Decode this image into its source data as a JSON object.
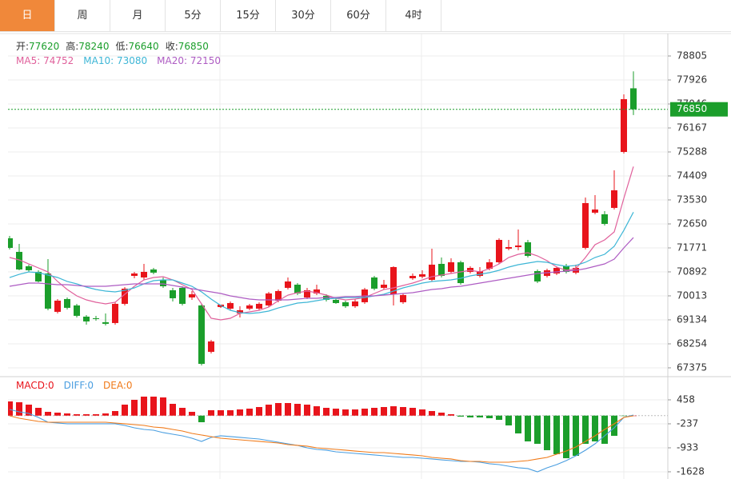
{
  "tabs": [
    "日",
    "周",
    "月",
    "5分",
    "15分",
    "30分",
    "60分",
    "4时"
  ],
  "active_tab": 0,
  "active_color": "#f0883a",
  "chart_data": [
    {
      "type": "candlestick",
      "ohlc_labels": [
        "开:",
        "高:",
        "低:",
        "收:"
      ],
      "up_color": "#e8141b",
      "down_color": "#1b9e2b",
      "open": [
        72123,
        71625,
        71097,
        70892,
        70833,
        69427,
        69896,
        69662,
        69251,
        69193,
        69046,
        69017,
        69720,
        70745,
        70687,
        70980,
        70599,
        70218,
        70306,
        69954,
        69662,
        67961,
        69603,
        69544,
        69368,
        69544,
        69544,
        69662,
        69837,
        70306,
        70423,
        69954,
        70101,
        70013,
        69866,
        69779,
        69632,
        69779,
        70687,
        70306,
        70071,
        69779,
        70657,
        70716,
        70599,
        71185,
        70892,
        71244,
        70892,
        70745,
        71009,
        71244,
        71742,
        71800,
        71976,
        70921,
        70745,
        70833,
        71097,
        70863,
        71771,
        73061,
        73003,
        73237,
        75288,
        77620
      ],
      "high": [
        72211,
        71918,
        71156,
        70951,
        71361,
        69896,
        69954,
        69720,
        69310,
        69281,
        69368,
        69779,
        70335,
        70892,
        71185,
        71038,
        70687,
        70306,
        70364,
        70189,
        69720,
        68401,
        69691,
        69808,
        69632,
        69720,
        69779,
        70159,
        70247,
        70687,
        70481,
        70306,
        70423,
        70071,
        69925,
        69837,
        69896,
        70306,
        70745,
        70599,
        71097,
        70101,
        70833,
        70951,
        71742,
        71420,
        71390,
        71302,
        71097,
        71068,
        71361,
        72123,
        72064,
        72445,
        72064,
        70980,
        71009,
        71097,
        71185,
        71156,
        73618,
        73706,
        73120,
        74614,
        77398,
        78240
      ],
      "low": [
        71712,
        70951,
        70892,
        70511,
        69486,
        69368,
        69515,
        69222,
        68958,
        69105,
        68929,
        68958,
        69662,
        70657,
        70599,
        70804,
        70306,
        69808,
        69662,
        69866,
        67463,
        67902,
        69574,
        69486,
        69222,
        69486,
        69486,
        69603,
        69779,
        70247,
        70042,
        69896,
        70042,
        69808,
        69720,
        69574,
        69574,
        69720,
        70218,
        70247,
        69662,
        69720,
        70599,
        70657,
        70540,
        70687,
        70833,
        70423,
        70833,
        70687,
        70951,
        71185,
        71683,
        71683,
        71420,
        70481,
        70687,
        70774,
        70833,
        70804,
        71712,
        73003,
        72592,
        73178,
        75229,
        76640
      ],
      "close": [
        71771,
        70980,
        70951,
        70540,
        69544,
        69837,
        69574,
        69281,
        69075,
        69163,
        68988,
        69720,
        70277,
        70833,
        70892,
        70863,
        70364,
        69925,
        69720,
        70071,
        67521,
        68342,
        69691,
        69749,
        69486,
        69662,
        69720,
        70101,
        70189,
        70540,
        70101,
        70218,
        70247,
        69866,
        69749,
        69632,
        69808,
        70247,
        70277,
        70423,
        71068,
        70042,
        70745,
        70804,
        71156,
        70745,
        71244,
        70481,
        71038,
        70921,
        71244,
        72064,
        71800,
        71859,
        71478,
        70540,
        70951,
        71038,
        70892,
        71038,
        73413,
        73178,
        72650,
        73882,
        77222,
        76850
      ],
      "ma_sep": ": ",
      "series": [
        {
          "name": "MA5",
          "color": "#e0609b",
          "values": [
            71419,
            71331,
            71184,
            71038,
            70891,
            70540,
            70246,
            70012,
            69865,
            69778,
            69719,
            69778,
            70071,
            70364,
            70598,
            70686,
            70715,
            70598,
            70422,
            70246,
            69719,
            69191,
            69133,
            69191,
            69367,
            69426,
            69484,
            69602,
            69836,
            70041,
            70129,
            70188,
            70129,
            70041,
            69924,
            69865,
            69895,
            69953,
            70100,
            70246,
            70305,
            70393,
            70481,
            70598,
            70715,
            70774,
            70833,
            70891,
            70950,
            70891,
            71009,
            71184,
            71419,
            71536,
            71595,
            71477,
            71302,
            71067,
            70950,
            71009,
            71419,
            71888,
            72064,
            72357,
            73588,
            74752
          ]
        },
        {
          "name": "MA10",
          "color": "#3db6d6",
          "values": [
            70686,
            70803,
            70891,
            70862,
            70774,
            70686,
            70540,
            70452,
            70334,
            70246,
            70188,
            70159,
            70217,
            70305,
            70452,
            70569,
            70598,
            70598,
            70481,
            70364,
            70159,
            69895,
            69660,
            69484,
            69396,
            69367,
            69396,
            69455,
            69572,
            69660,
            69748,
            69778,
            69836,
            69895,
            69924,
            69953,
            69953,
            69953,
            70012,
            70071,
            70188,
            70305,
            70393,
            70481,
            70540,
            70569,
            70598,
            70657,
            70745,
            70803,
            70862,
            70950,
            71067,
            71155,
            71214,
            71272,
            71243,
            71155,
            71096,
            71126,
            71243,
            71419,
            71536,
            71829,
            72415,
            73080
          ]
        },
        {
          "name": "MA20",
          "color": "#ae5cc3",
          "values": [
            70364,
            70422,
            70481,
            70481,
            70452,
            70422,
            70422,
            70393,
            70364,
            70364,
            70364,
            70393,
            70422,
            70452,
            70452,
            70452,
            70452,
            70393,
            70334,
            70276,
            70217,
            70159,
            70100,
            70012,
            69953,
            69895,
            69865,
            69865,
            69865,
            69865,
            69895,
            69924,
            69924,
            69953,
            69953,
            69983,
            69983,
            70012,
            70012,
            70041,
            70071,
            70100,
            70129,
            70188,
            70246,
            70276,
            70334,
            70364,
            70422,
            70481,
            70540,
            70598,
            70657,
            70715,
            70774,
            70833,
            70862,
            70891,
            70921,
            70950,
            71009,
            71096,
            71184,
            71360,
            71771,
            72150
          ]
        }
      ],
      "ylim": [
        67081,
        79626
      ],
      "yticks": [
        78805,
        77926,
        77046,
        76167,
        75288,
        74409,
        73530,
        72650,
        71771,
        70892,
        70013,
        69134,
        68254,
        67375
      ],
      "grid": true,
      "last_price_line": true
    },
    {
      "type": "macd",
      "sep": ":",
      "series": [
        {
          "name": "MACD",
          "kind": "bar",
          "color": "#e8141b",
          "down_color": "#1b9e2b",
          "readout": 0,
          "values": [
            412,
            388,
            319,
            226,
            110,
            87,
            64,
            41,
            41,
            41,
            64,
            133,
            319,
            458,
            551,
            551,
            528,
            342,
            226,
            110,
            -191,
            157,
            157,
            157,
            180,
            203,
            249,
            319,
            365,
            365,
            342,
            319,
            272,
            226,
            203,
            180,
            180,
            203,
            226,
            249,
            272,
            249,
            226,
            180,
            133,
            87,
            41,
            -29,
            -52,
            -52,
            -75,
            -122,
            -284,
            -516,
            -747,
            -817,
            -1002,
            -1118,
            -1234,
            -1165,
            -817,
            -747,
            -817,
            -585,
            -5,
            0
          ]
        },
        {
          "name": "DIFF",
          "kind": "line",
          "color": "#4a9ee0",
          "readout": 0,
          "values": [
            180,
            110,
            64,
            -52,
            -191,
            -214,
            -237,
            -237,
            -237,
            -237,
            -237,
            -237,
            -284,
            -353,
            -400,
            -423,
            -492,
            -539,
            -585,
            -655,
            -747,
            -631,
            -585,
            -608,
            -631,
            -655,
            -678,
            -724,
            -771,
            -817,
            -863,
            -933,
            -979,
            -1002,
            -1049,
            -1072,
            -1095,
            -1118,
            -1141,
            -1165,
            -1188,
            -1211,
            -1211,
            -1234,
            -1257,
            -1281,
            -1304,
            -1327,
            -1327,
            -1350,
            -1396,
            -1420,
            -1466,
            -1512,
            -1535,
            -1628,
            -1512,
            -1420,
            -1304,
            -1165,
            -1002,
            -817,
            -585,
            -353,
            -52,
            18
          ]
        },
        {
          "name": "DEA",
          "kind": "line",
          "color": "#f07a19",
          "readout": 0,
          "values": [
            -6,
            -75,
            -122,
            -168,
            -191,
            -191,
            -191,
            -191,
            -191,
            -191,
            -191,
            -214,
            -237,
            -261,
            -284,
            -330,
            -353,
            -400,
            -446,
            -516,
            -562,
            -608,
            -655,
            -678,
            -701,
            -724,
            -747,
            -771,
            -794,
            -840,
            -863,
            -886,
            -933,
            -956,
            -979,
            -1002,
            -1026,
            -1049,
            -1072,
            -1072,
            -1095,
            -1118,
            -1141,
            -1165,
            -1211,
            -1234,
            -1257,
            -1304,
            -1327,
            -1327,
            -1350,
            -1350,
            -1350,
            -1327,
            -1304,
            -1257,
            -1211,
            -1118,
            -1026,
            -910,
            -747,
            -585,
            -400,
            -237,
            -52,
            -6
          ]
        }
      ],
      "ylim": [
        -1837,
        1107
      ],
      "yticks": [
        458,
        -237,
        -933,
        -1628
      ],
      "grid": true
    }
  ]
}
